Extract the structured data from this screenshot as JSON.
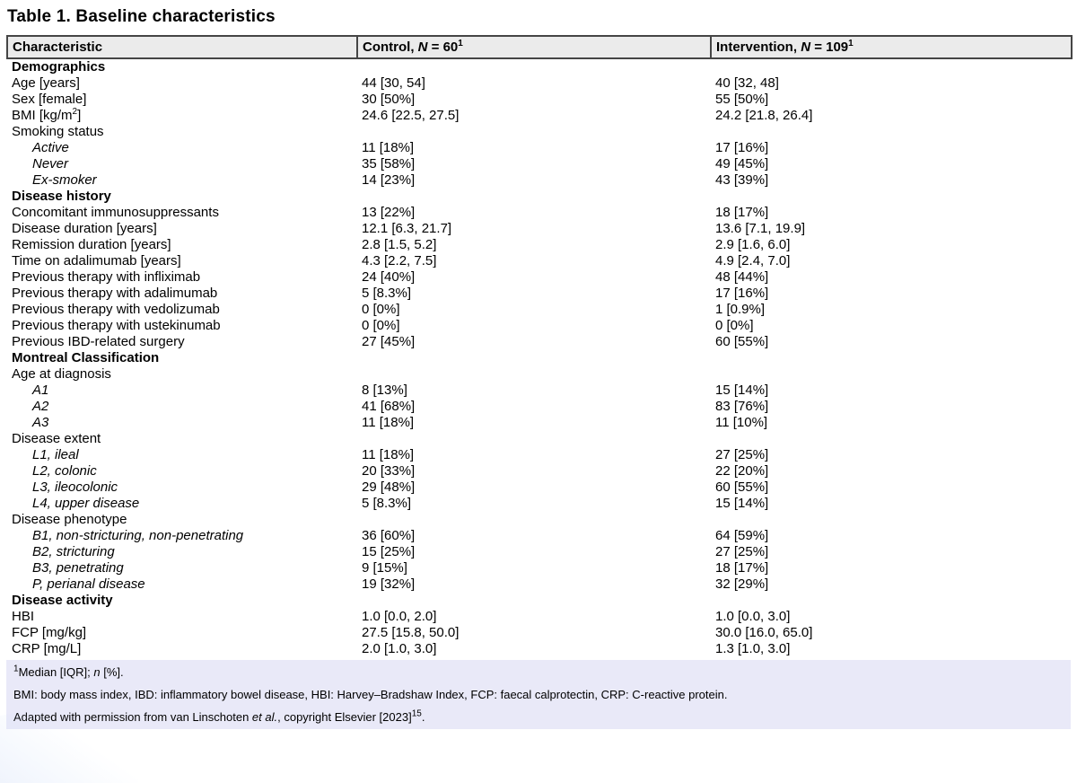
{
  "title": "Table 1. Baseline characteristics",
  "columns": {
    "characteristic": "Characteristic",
    "control": [
      {
        "v": "Control, "
      },
      {
        "v": "N",
        "i": true
      },
      {
        "v": " = 60"
      },
      {
        "v": "1",
        "sup": true
      }
    ],
    "intervention": [
      {
        "v": "Intervention, "
      },
      {
        "v": "N",
        "i": true
      },
      {
        "v": " = 109"
      },
      {
        "v": "1",
        "sup": true
      }
    ]
  },
  "rows": [
    {
      "type": "section",
      "label": "Demographics",
      "control": "",
      "intervention": ""
    },
    {
      "type": "row",
      "label": "Age [years]",
      "control": "44 [30, 54]",
      "intervention": "40 [32, 48]"
    },
    {
      "type": "row",
      "label": "Sex [female]",
      "control": "30 [50%]",
      "intervention": "55 [50%]"
    },
    {
      "type": "row",
      "label": [
        {
          "v": "BMI [kg/m"
        },
        {
          "v": "2",
          "sup": true
        },
        {
          "v": "]"
        }
      ],
      "control": "24.6 [22.5, 27.5]",
      "intervention": "24.2 [21.8, 26.4]"
    },
    {
      "type": "row",
      "label": "Smoking status",
      "control": "",
      "intervention": ""
    },
    {
      "type": "sub",
      "label": "Active",
      "control": "11 [18%]",
      "intervention": "17 [16%]"
    },
    {
      "type": "sub",
      "label": "Never",
      "control": "35 [58%]",
      "intervention": "49 [45%]"
    },
    {
      "type": "sub",
      "label": "Ex-smoker",
      "control": "14 [23%]",
      "intervention": "43 [39%]"
    },
    {
      "type": "section",
      "label": "Disease history",
      "control": "",
      "intervention": ""
    },
    {
      "type": "row",
      "label": "Concomitant immunosuppressants",
      "control": "13 [22%]",
      "intervention": "18 [17%]"
    },
    {
      "type": "row",
      "label": "Disease duration [years]",
      "control": "12.1 [6.3, 21.7]",
      "intervention": "13.6 [7.1, 19.9]"
    },
    {
      "type": "row",
      "label": "Remission duration [years]",
      "control": "2.8 [1.5, 5.2]",
      "intervention": "2.9 [1.6, 6.0]"
    },
    {
      "type": "row",
      "label": "Time on adalimumab [years]",
      "control": "4.3 [2.2, 7.5]",
      "intervention": "4.9 [2.4, 7.0]"
    },
    {
      "type": "row",
      "label": "Previous therapy with infliximab",
      "control": "24 [40%]",
      "intervention": "48 [44%]"
    },
    {
      "type": "row",
      "label": "Previous therapy with adalimumab",
      "control": "5 [8.3%]",
      "intervention": "17 [16%]"
    },
    {
      "type": "row",
      "label": "Previous therapy with vedolizumab",
      "control": "0 [0%]",
      "intervention": "1 [0.9%]"
    },
    {
      "type": "row",
      "label": "Previous therapy with ustekinumab",
      "control": "0 [0%]",
      "intervention": "0 [0%]"
    },
    {
      "type": "row",
      "label": "Previous IBD-related surgery",
      "control": "27 [45%]",
      "intervention": "60 [55%]"
    },
    {
      "type": "section",
      "label": "Montreal Classification",
      "control": "",
      "intervention": ""
    },
    {
      "type": "row",
      "label": "Age at diagnosis",
      "control": "",
      "intervention": ""
    },
    {
      "type": "sub",
      "label": "A1",
      "control": "8 [13%]",
      "intervention": "15 [14%]"
    },
    {
      "type": "sub",
      "label": "A2",
      "control": "41 [68%]",
      "intervention": "83 [76%]"
    },
    {
      "type": "sub",
      "label": "A3",
      "control": "11 [18%]",
      "intervention": "11 [10%]"
    },
    {
      "type": "row",
      "label": "Disease extent",
      "control": "",
      "intervention": ""
    },
    {
      "type": "sub",
      "label": "L1, ileal",
      "control": "11 [18%]",
      "intervention": "27 [25%]"
    },
    {
      "type": "sub",
      "label": "L2, colonic",
      "control": "20 [33%]",
      "intervention": "22 [20%]"
    },
    {
      "type": "sub",
      "label": "L3, ileocolonic",
      "control": "29 [48%]",
      "intervention": "60 [55%]"
    },
    {
      "type": "sub",
      "label": "L4, upper disease",
      "control": "5 [8.3%]",
      "intervention": "15 [14%]"
    },
    {
      "type": "row",
      "label": "Disease phenotype",
      "control": "",
      "intervention": ""
    },
    {
      "type": "sub",
      "label": "B1, non-stricturing, non-penetrating",
      "control": "36 [60%]",
      "intervention": "64 [59%]"
    },
    {
      "type": "sub",
      "label": "B2, stricturing",
      "control": "15 [25%]",
      "intervention": "27 [25%]"
    },
    {
      "type": "sub",
      "label": "B3, penetrating",
      "control": "9 [15%]",
      "intervention": "18 [17%]"
    },
    {
      "type": "sub",
      "label": "P, perianal disease",
      "control": "19 [32%]",
      "intervention": "32 [29%]"
    },
    {
      "type": "section",
      "label": "Disease activity",
      "control": "",
      "intervention": ""
    },
    {
      "type": "row",
      "label": "HBI",
      "control": "1.0 [0.0, 2.0]",
      "intervention": "1.0 [0.0, 3.0]"
    },
    {
      "type": "row",
      "label": "FCP [mg/kg]",
      "control": "27.5 [15.8, 50.0]",
      "intervention": "30.0 [16.0, 65.0]"
    },
    {
      "type": "row",
      "label": "CRP [mg/L]",
      "control": "2.0 [1.0, 3.0]",
      "intervention": "1.3 [1.0, 3.0]"
    }
  ],
  "footnotes": [
    [
      {
        "v": "1",
        "sup": true
      },
      {
        "v": "Median [IQR]; "
      },
      {
        "v": "n",
        "i": true
      },
      {
        "v": " [%]."
      }
    ],
    [
      {
        "v": "BMI: body mass index, IBD: inflammatory bowel disease, HBI: Harvey–Bradshaw Index, FCP: faecal calprotectin, CRP: C-reactive protein."
      }
    ],
    [
      {
        "v": "Adapted with permission from van Linschoten "
      },
      {
        "v": "et al.",
        "i": true
      },
      {
        "v": ", copyright Elsevier [2023]"
      },
      {
        "v": "15",
        "sup": true
      },
      {
        "v": "."
      }
    ]
  ]
}
